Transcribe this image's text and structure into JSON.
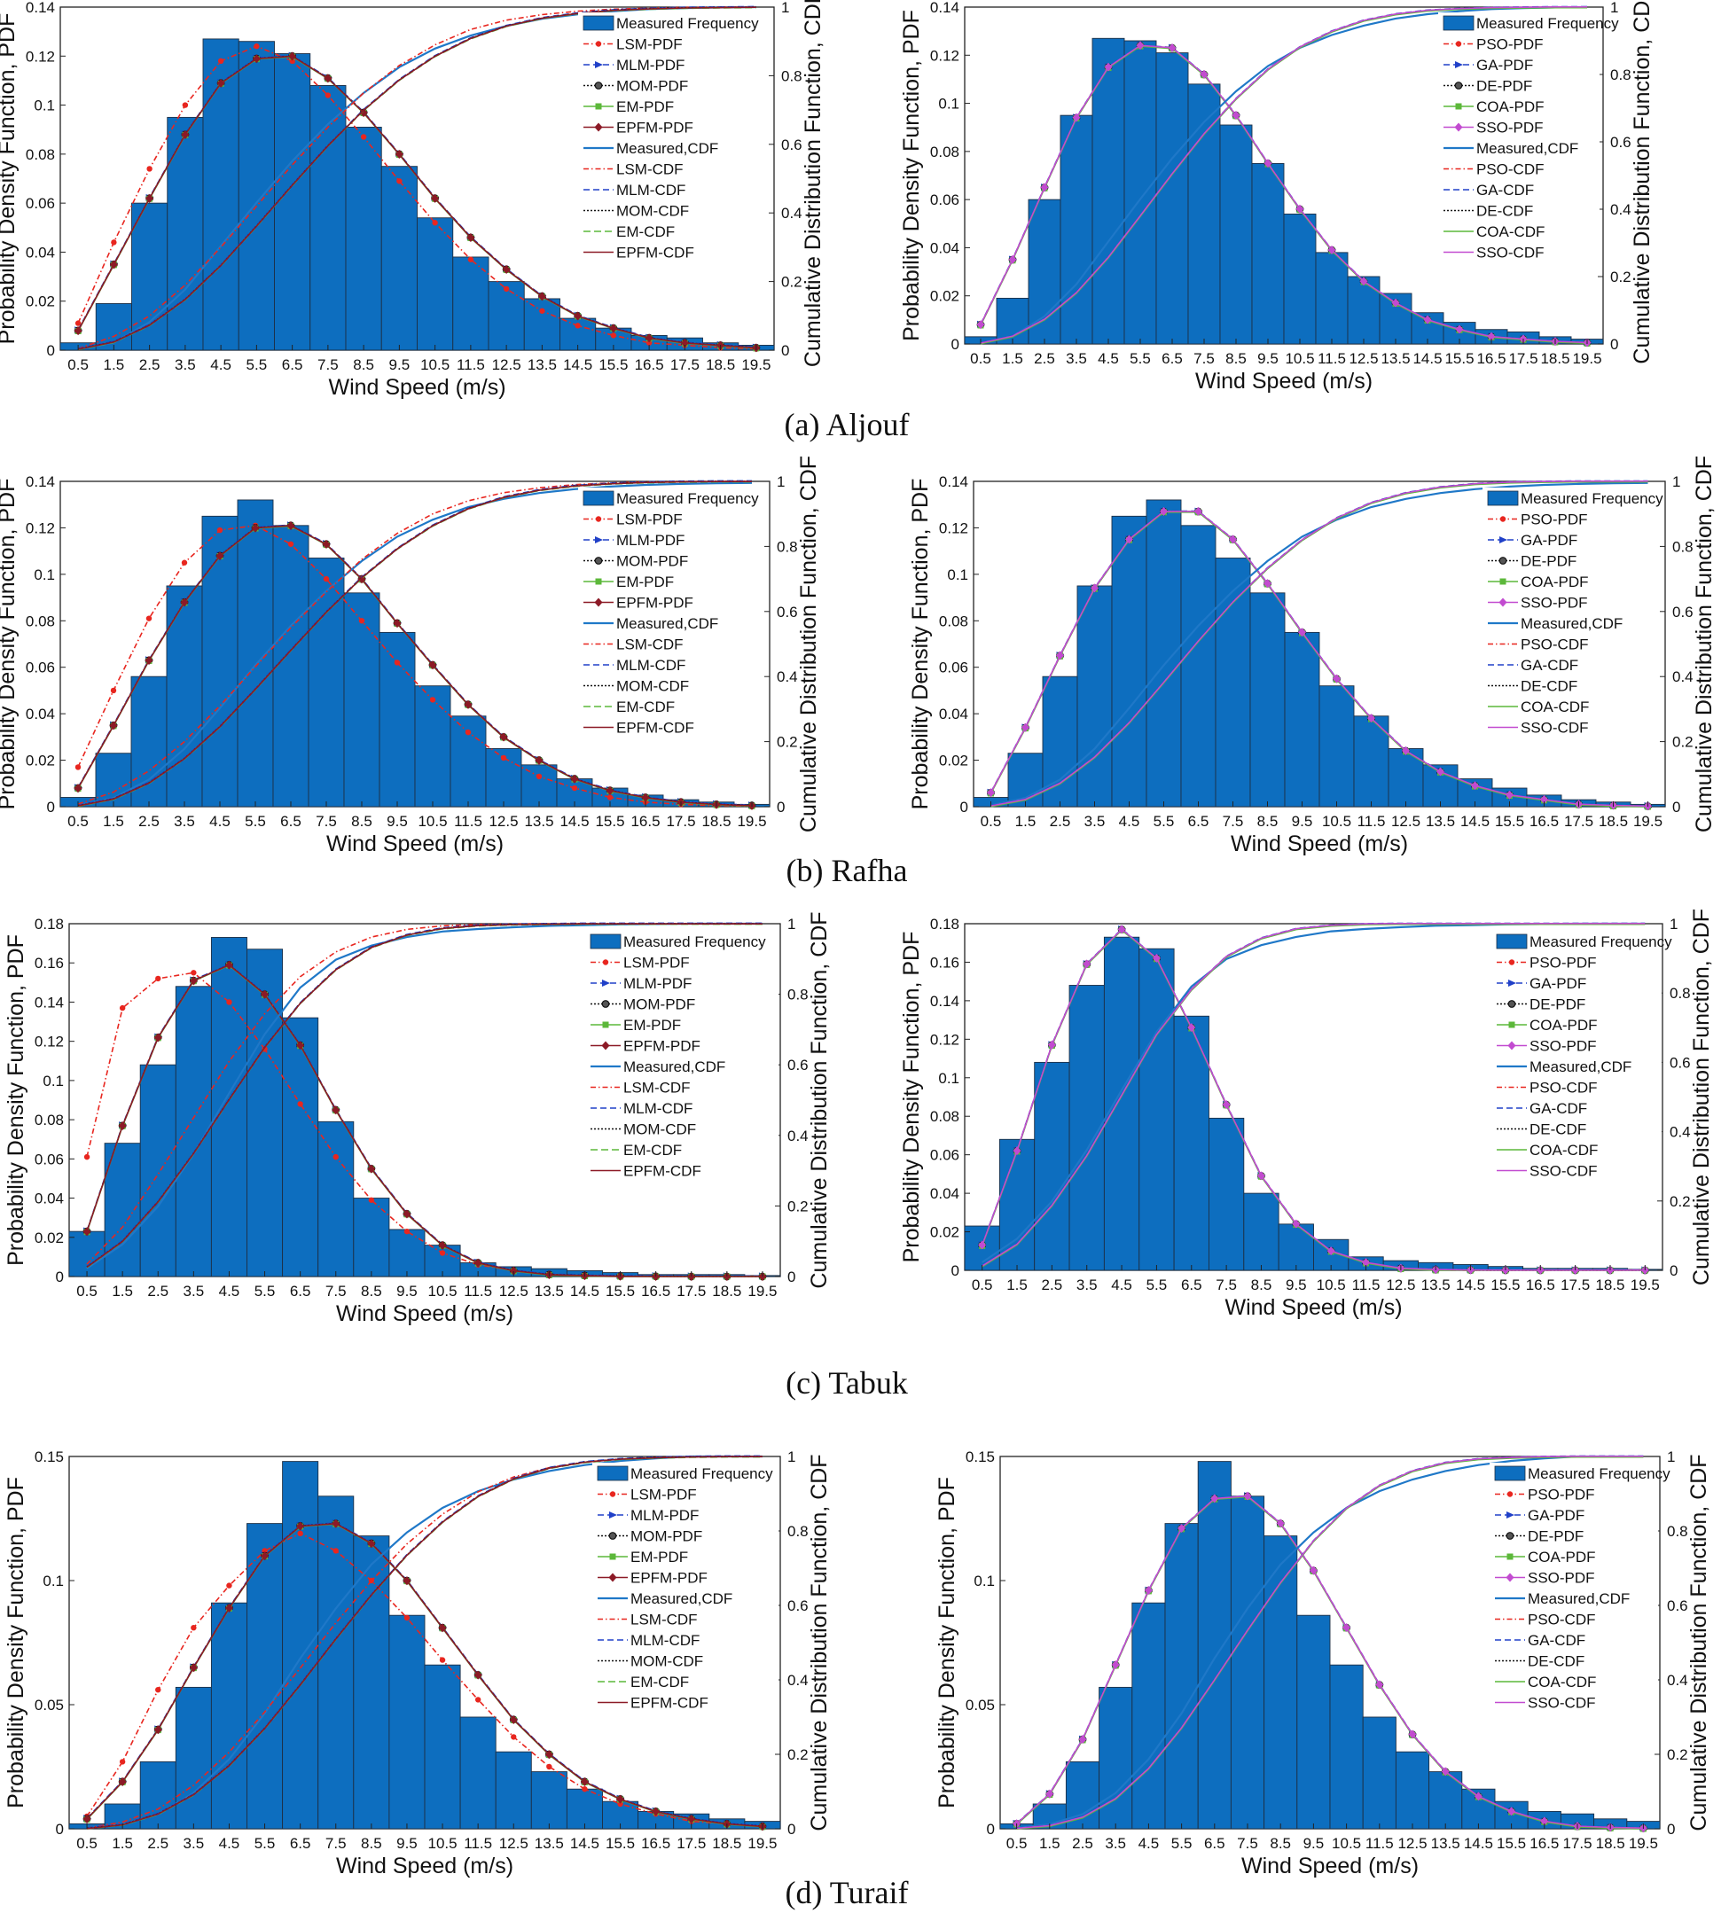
{
  "xlabel": "Wind Speed (m/s)",
  "ylabel_left": "Probability Density Function, PDF",
  "ylabel_right": "Cumulative Distribution Function, CDF",
  "x_ticks": [
    "0.5",
    "1.5",
    "2.5",
    "3.5",
    "4.5",
    "5.5",
    "6.5",
    "7.5",
    "8.5",
    "9.5",
    "10.5",
    "11.5",
    "12.5",
    "13.5",
    "14.5",
    "15.5",
    "16.5",
    "17.5",
    "18.5",
    "19.5"
  ],
  "cdf_ticks": [
    "0",
    "0.2",
    "0.4",
    "0.6",
    "0.8",
    "1"
  ],
  "colors": {
    "bar": "#0d6ebf",
    "bar_edge": "#1d2f45",
    "measured_cdf": "#1f78c8",
    "red": "#e8261f",
    "blue_dash": "#2040c8",
    "black_dot": "#111111",
    "green": "#5cb83a",
    "darkred": "#8c1a26",
    "purple": "#c24bd0"
  },
  "legend_sets": {
    "A": [
      "Measured Frequency",
      "LSM-PDF",
      "MLM-PDF",
      "MOM-PDF",
      "EM-PDF",
      "EPFM-PDF",
      "Measured,CDF",
      "LSM-CDF",
      "MLM-CDF",
      "MOM-CDF",
      "EM-CDF",
      "EPFM-CDF"
    ],
    "B": [
      "Measured Frequency",
      "PSO-PDF",
      "GA-PDF",
      "DE-PDF",
      "COA-PDF",
      "SSO-PDF",
      "Measured,CDF",
      "PSO-CDF",
      "GA-CDF",
      "DE-CDF",
      "COA-CDF",
      "SSO-CDF"
    ]
  },
  "captions": [
    "(a) Aljouf",
    "(b) Rafha",
    "(c) Tabuk",
    "(d) Turaif"
  ],
  "chart_data": [
    {
      "type": "bar",
      "site": "Aljouf",
      "legend_set": "A",
      "ylim": [
        0,
        0.14
      ],
      "y_ticks": [
        "0",
        "0.02",
        "0.04",
        "0.06",
        "0.08",
        "0.1",
        "0.12",
        "0.14"
      ],
      "values": [
        0.003,
        0.019,
        0.06,
        0.095,
        0.127,
        0.126,
        0.121,
        0.108,
        0.091,
        0.075,
        0.054,
        0.038,
        0.028,
        0.021,
        0.013,
        0.009,
        0.006,
        0.005,
        0.003,
        0.002
      ],
      "pdf_red": [
        0.011,
        0.044,
        0.074,
        0.1,
        0.118,
        0.124,
        0.118,
        0.104,
        0.087,
        0.069,
        0.052,
        0.037,
        0.025,
        0.016,
        0.01,
        0.006,
        0.003,
        0.002,
        0.001,
        0.0005
      ],
      "pdf_fit": [
        0.008,
        0.035,
        0.062,
        0.088,
        0.109,
        0.119,
        0.12,
        0.111,
        0.097,
        0.08,
        0.062,
        0.046,
        0.033,
        0.022,
        0.014,
        0.009,
        0.005,
        0.003,
        0.002,
        0.001
      ],
      "cdf_meas": [
        0.003,
        0.022,
        0.082,
        0.177,
        0.304,
        0.43,
        0.551,
        0.659,
        0.75,
        0.825,
        0.879,
        0.917,
        0.945,
        0.966,
        0.979,
        0.988,
        0.994,
        0.997,
        0.999,
        1.0
      ],
      "cdf_red": [
        0.005,
        0.04,
        0.1,
        0.19,
        0.3,
        0.42,
        0.54,
        0.65,
        0.75,
        0.83,
        0.89,
        0.935,
        0.962,
        0.978,
        0.988,
        0.994,
        0.997,
        0.999,
        1.0,
        1.0
      ],
      "cdf_fit": [
        0.003,
        0.024,
        0.073,
        0.148,
        0.247,
        0.362,
        0.481,
        0.596,
        0.7,
        0.788,
        0.857,
        0.909,
        0.945,
        0.968,
        0.982,
        0.991,
        0.995,
        0.998,
        0.999,
        1.0
      ]
    },
    {
      "type": "bar",
      "site": "Aljouf",
      "legend_set": "B",
      "ylim": [
        0,
        0.14
      ],
      "y_ticks": [
        "0",
        "0.02",
        "0.04",
        "0.06",
        "0.08",
        "0.1",
        "0.12",
        "0.14"
      ],
      "values": [
        0.003,
        0.019,
        0.06,
        0.095,
        0.127,
        0.126,
        0.121,
        0.108,
        0.091,
        0.075,
        0.054,
        0.038,
        0.028,
        0.021,
        0.013,
        0.009,
        0.006,
        0.005,
        0.003,
        0.002
      ],
      "pdf_fit": [
        0.008,
        0.035,
        0.065,
        0.094,
        0.115,
        0.124,
        0.123,
        0.112,
        0.095,
        0.075,
        0.056,
        0.039,
        0.026,
        0.017,
        0.01,
        0.006,
        0.003,
        0.002,
        0.001,
        0.0005
      ],
      "cdf_meas": [
        0.003,
        0.022,
        0.082,
        0.177,
        0.304,
        0.43,
        0.551,
        0.659,
        0.75,
        0.825,
        0.879,
        0.917,
        0.945,
        0.966,
        0.979,
        0.988,
        0.994,
        0.997,
        0.999,
        1.0
      ],
      "cdf_fit": [
        0.002,
        0.023,
        0.073,
        0.152,
        0.257,
        0.38,
        0.505,
        0.624,
        0.728,
        0.815,
        0.881,
        0.928,
        0.96,
        0.979,
        0.99,
        0.995,
        0.998,
        0.999,
        1.0,
        1.0
      ]
    },
    {
      "type": "bar",
      "site": "Rafha",
      "legend_set": "A",
      "ylim": [
        0,
        0.14
      ],
      "y_ticks": [
        "0",
        "0.02",
        "0.04",
        "0.06",
        "0.08",
        "0.1",
        "0.12",
        "0.14"
      ],
      "values": [
        0.004,
        0.023,
        0.056,
        0.095,
        0.125,
        0.132,
        0.121,
        0.107,
        0.092,
        0.075,
        0.052,
        0.039,
        0.025,
        0.018,
        0.012,
        0.008,
        0.005,
        0.003,
        0.002,
        0.001
      ],
      "pdf_red": [
        0.017,
        0.05,
        0.081,
        0.105,
        0.119,
        0.121,
        0.113,
        0.098,
        0.08,
        0.062,
        0.046,
        0.032,
        0.021,
        0.013,
        0.008,
        0.004,
        0.002,
        0.001,
        0.0005,
        0.0002
      ],
      "pdf_fit": [
        0.008,
        0.035,
        0.063,
        0.088,
        0.108,
        0.12,
        0.121,
        0.113,
        0.098,
        0.079,
        0.061,
        0.044,
        0.03,
        0.02,
        0.012,
        0.007,
        0.004,
        0.002,
        0.001,
        0.0005
      ],
      "cdf_meas": [
        0.004,
        0.027,
        0.083,
        0.178,
        0.303,
        0.435,
        0.556,
        0.663,
        0.755,
        0.83,
        0.882,
        0.921,
        0.946,
        0.964,
        0.976,
        0.984,
        0.989,
        0.992,
        0.994,
        0.995
      ],
      "cdf_red": [
        0.008,
        0.045,
        0.11,
        0.2,
        0.31,
        0.43,
        0.55,
        0.66,
        0.76,
        0.84,
        0.9,
        0.94,
        0.965,
        0.98,
        0.99,
        0.995,
        0.998,
        0.999,
        1.0,
        1.0
      ],
      "cdf_fit": [
        0.003,
        0.024,
        0.073,
        0.148,
        0.246,
        0.361,
        0.481,
        0.598,
        0.704,
        0.793,
        0.864,
        0.916,
        0.951,
        0.973,
        0.986,
        0.993,
        0.997,
        0.999,
        1.0,
        1.0
      ]
    },
    {
      "type": "bar",
      "site": "Rafha",
      "legend_set": "B",
      "ylim": [
        0,
        0.14
      ],
      "y_ticks": [
        "0",
        "0.02",
        "0.04",
        "0.06",
        "0.08",
        "0.1",
        "0.12",
        "0.14"
      ],
      "values": [
        0.004,
        0.023,
        0.056,
        0.095,
        0.125,
        0.132,
        0.121,
        0.107,
        0.092,
        0.075,
        0.052,
        0.039,
        0.025,
        0.018,
        0.012,
        0.008,
        0.005,
        0.003,
        0.002,
        0.001
      ],
      "pdf_fit": [
        0.006,
        0.034,
        0.065,
        0.094,
        0.115,
        0.127,
        0.127,
        0.115,
        0.096,
        0.075,
        0.055,
        0.038,
        0.024,
        0.015,
        0.009,
        0.005,
        0.003,
        0.001,
        0.0005,
        0.0002
      ],
      "cdf_meas": [
        0.004,
        0.027,
        0.083,
        0.178,
        0.303,
        0.435,
        0.556,
        0.663,
        0.755,
        0.83,
        0.882,
        0.921,
        0.946,
        0.964,
        0.976,
        0.984,
        0.989,
        0.992,
        0.994,
        0.995
      ],
      "cdf_fit": [
        0.002,
        0.022,
        0.072,
        0.152,
        0.258,
        0.382,
        0.509,
        0.629,
        0.733,
        0.82,
        0.887,
        0.934,
        0.964,
        0.982,
        0.992,
        0.997,
        0.999,
        1.0,
        1.0,
        1.0
      ]
    },
    {
      "type": "bar",
      "site": "Tabuk",
      "legend_set": "A",
      "ylim": [
        0,
        0.18
      ],
      "y_ticks": [
        "0",
        "0.02",
        "0.04",
        "0.06",
        "0.08",
        "0.1",
        "0.12",
        "0.14",
        "0.16",
        "0.18"
      ],
      "values": [
        0.023,
        0.068,
        0.108,
        0.148,
        0.173,
        0.167,
        0.132,
        0.079,
        0.04,
        0.024,
        0.016,
        0.007,
        0.005,
        0.004,
        0.003,
        0.002,
        0.001,
        0.001,
        0.001,
        0.0005
      ],
      "pdf_red": [
        0.061,
        0.137,
        0.152,
        0.155,
        0.14,
        0.116,
        0.088,
        0.061,
        0.039,
        0.023,
        0.012,
        0.006,
        0.003,
        0.001,
        0.0005,
        0.0002,
        0.0001,
        0.0,
        0.0,
        0.0
      ],
      "pdf_fit": [
        0.023,
        0.077,
        0.122,
        0.151,
        0.159,
        0.144,
        0.118,
        0.085,
        0.055,
        0.032,
        0.016,
        0.007,
        0.003,
        0.001,
        0.0005,
        0.0002,
        0.0001,
        0.0,
        0.0,
        0.0
      ],
      "cdf_meas": [
        0.023,
        0.091,
        0.199,
        0.347,
        0.52,
        0.687,
        0.819,
        0.898,
        0.938,
        0.962,
        0.978,
        0.985,
        0.99,
        0.994,
        0.996,
        0.998,
        0.999,
        1.0,
        1.0,
        1.0
      ],
      "cdf_red": [
        0.035,
        0.14,
        0.29,
        0.45,
        0.61,
        0.745,
        0.85,
        0.92,
        0.962,
        0.984,
        0.994,
        0.998,
        0.999,
        1.0,
        1.0,
        1.0,
        1.0,
        1.0,
        1.0,
        1.0
      ],
      "cdf_fit": [
        0.027,
        0.1,
        0.212,
        0.349,
        0.502,
        0.65,
        0.775,
        0.87,
        0.933,
        0.968,
        0.987,
        0.995,
        0.998,
        0.999,
        1.0,
        1.0,
        1.0,
        1.0,
        1.0,
        1.0
      ]
    },
    {
      "type": "bar",
      "site": "Tabuk",
      "legend_set": "B",
      "ylim": [
        0,
        0.18
      ],
      "y_ticks": [
        "0",
        "0.02",
        "0.04",
        "0.06",
        "0.08",
        "0.1",
        "0.12",
        "0.14",
        "0.16",
        "0.18"
      ],
      "values": [
        0.023,
        0.068,
        0.108,
        0.148,
        0.173,
        0.167,
        0.132,
        0.079,
        0.04,
        0.024,
        0.016,
        0.007,
        0.005,
        0.004,
        0.003,
        0.002,
        0.001,
        0.001,
        0.001,
        0.0005
      ],
      "pdf_fit": [
        0.013,
        0.062,
        0.117,
        0.159,
        0.177,
        0.162,
        0.126,
        0.086,
        0.049,
        0.024,
        0.01,
        0.004,
        0.001,
        0.0003,
        0.0001,
        0.0,
        0.0,
        0.0,
        0.0,
        0.0
      ],
      "cdf_meas": [
        0.023,
        0.091,
        0.199,
        0.347,
        0.52,
        0.687,
        0.819,
        0.898,
        0.938,
        0.962,
        0.978,
        0.985,
        0.99,
        0.994,
        0.996,
        0.998,
        0.999,
        1.0,
        1.0,
        1.0
      ],
      "cdf_fit": [
        0.012,
        0.075,
        0.187,
        0.331,
        0.505,
        0.68,
        0.81,
        0.905,
        0.958,
        0.985,
        0.995,
        0.999,
        1.0,
        1.0,
        1.0,
        1.0,
        1.0,
        1.0,
        1.0,
        1.0
      ]
    },
    {
      "type": "bar",
      "site": "Turaif",
      "legend_set": "A",
      "ylim": [
        0,
        0.15
      ],
      "y_ticks": [
        "0",
        "0.05",
        "0.1",
        "0.15"
      ],
      "values": [
        0.002,
        0.01,
        0.027,
        0.057,
        0.091,
        0.123,
        0.148,
        0.134,
        0.118,
        0.086,
        0.066,
        0.045,
        0.031,
        0.023,
        0.016,
        0.011,
        0.007,
        0.006,
        0.004,
        0.003
      ],
      "pdf_red": [
        0.005,
        0.027,
        0.056,
        0.081,
        0.098,
        0.112,
        0.119,
        0.112,
        0.1,
        0.085,
        0.068,
        0.052,
        0.037,
        0.025,
        0.016,
        0.01,
        0.006,
        0.003,
        0.002,
        0.001
      ],
      "pdf_fit": [
        0.004,
        0.019,
        0.04,
        0.065,
        0.089,
        0.11,
        0.122,
        0.123,
        0.115,
        0.1,
        0.081,
        0.062,
        0.044,
        0.03,
        0.019,
        0.012,
        0.007,
        0.004,
        0.002,
        0.001
      ],
      "cdf_meas": [
        0.002,
        0.012,
        0.039,
        0.096,
        0.187,
        0.31,
        0.458,
        0.592,
        0.71,
        0.796,
        0.862,
        0.907,
        0.938,
        0.961,
        0.977,
        0.988,
        0.995,
        1.0,
        1.0,
        1.0
      ],
      "cdf_red": [
        0.002,
        0.018,
        0.053,
        0.117,
        0.206,
        0.314,
        0.432,
        0.553,
        0.666,
        0.765,
        0.845,
        0.905,
        0.945,
        0.97,
        0.985,
        0.993,
        0.997,
        0.999,
        1.0,
        1.0
      ],
      "cdf_fit": [
        0.001,
        0.011,
        0.04,
        0.092,
        0.17,
        0.27,
        0.387,
        0.51,
        0.628,
        0.735,
        0.824,
        0.893,
        0.94,
        0.969,
        0.985,
        0.993,
        0.997,
        0.999,
        1.0,
        1.0
      ]
    },
    {
      "type": "bar",
      "site": "Turaif",
      "legend_set": "B",
      "ylim": [
        0,
        0.15
      ],
      "y_ticks": [
        "0",
        "0.05",
        "0.1",
        "0.15"
      ],
      "values": [
        0.002,
        0.01,
        0.027,
        0.057,
        0.091,
        0.123,
        0.148,
        0.134,
        0.118,
        0.086,
        0.066,
        0.045,
        0.031,
        0.023,
        0.016,
        0.011,
        0.007,
        0.006,
        0.004,
        0.003
      ],
      "pdf_fit": [
        0.002,
        0.014,
        0.036,
        0.066,
        0.096,
        0.121,
        0.133,
        0.134,
        0.123,
        0.104,
        0.081,
        0.058,
        0.038,
        0.023,
        0.013,
        0.007,
        0.003,
        0.001,
        0.0005,
        0.0002
      ],
      "cdf_meas": [
        0.002,
        0.012,
        0.039,
        0.096,
        0.187,
        0.31,
        0.458,
        0.592,
        0.71,
        0.796,
        0.862,
        0.907,
        0.938,
        0.961,
        0.977,
        0.988,
        0.995,
        1.0,
        1.0,
        1.0
      ],
      "cdf_fit": [
        0.001,
        0.008,
        0.031,
        0.081,
        0.162,
        0.271,
        0.4,
        0.533,
        0.661,
        0.773,
        0.861,
        0.922,
        0.961,
        0.983,
        0.993,
        0.997,
        0.999,
        1.0,
        1.0,
        1.0
      ]
    }
  ]
}
